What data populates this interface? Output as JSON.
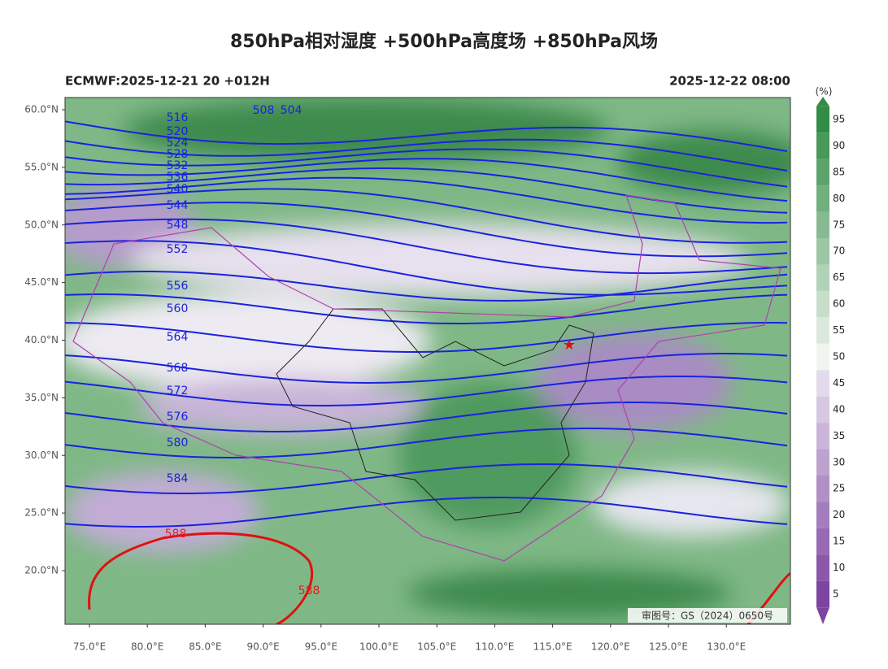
{
  "header": {
    "title": "850hPa相对湿度 +500hPa高度场 +850hPa风场",
    "model_run": "ECMWF:2025-12-21 20 +012H",
    "valid_time": "2025-12-22 08:00"
  },
  "map": {
    "lat_labels": [
      {
        "value": 60,
        "label": "60.0°N"
      },
      {
        "value": 55,
        "label": "55.0°N"
      },
      {
        "value": 50,
        "label": "50.0°N"
      },
      {
        "value": 45,
        "label": "45.0°N"
      },
      {
        "value": 40,
        "label": "40.0°N"
      },
      {
        "value": 35,
        "label": "35.0°N"
      },
      {
        "value": 30,
        "label": "30.0°N"
      },
      {
        "value": 25,
        "label": "25.0°N"
      },
      {
        "value": 20,
        "label": "20.0°N"
      }
    ],
    "lon_labels": [
      {
        "value": 75,
        "label": "75.0°E"
      },
      {
        "value": 80,
        "label": "80.0°E"
      },
      {
        "value": 85,
        "label": "85.0°E"
      },
      {
        "value": 90,
        "label": "90.0°E"
      },
      {
        "value": 95,
        "label": "95.0°E"
      },
      {
        "value": 100,
        "label": "100.0°E"
      },
      {
        "value": 105,
        "label": "105.0°E"
      },
      {
        "value": 110,
        "label": "110.0°E"
      },
      {
        "value": 115,
        "label": "115.0°E"
      },
      {
        "value": 120,
        "label": "120.0°E"
      },
      {
        "value": 125,
        "label": "125.0°E"
      },
      {
        "value": 130,
        "label": "130.0°E"
      }
    ],
    "contour_labels": [
      516,
      520,
      524,
      528,
      532,
      536,
      540,
      544,
      548,
      552,
      556,
      560,
      564,
      568,
      572,
      576,
      580,
      584,
      508,
      504,
      588,
      588
    ],
    "watermark": "审图号：GS（2024）0650号"
  },
  "colorbar": {
    "unit": "(%)",
    "ticks": [
      95,
      90,
      85,
      80,
      75,
      70,
      65,
      60,
      55,
      50,
      45,
      40,
      35,
      30,
      25,
      20,
      15,
      10,
      5
    ]
  }
}
